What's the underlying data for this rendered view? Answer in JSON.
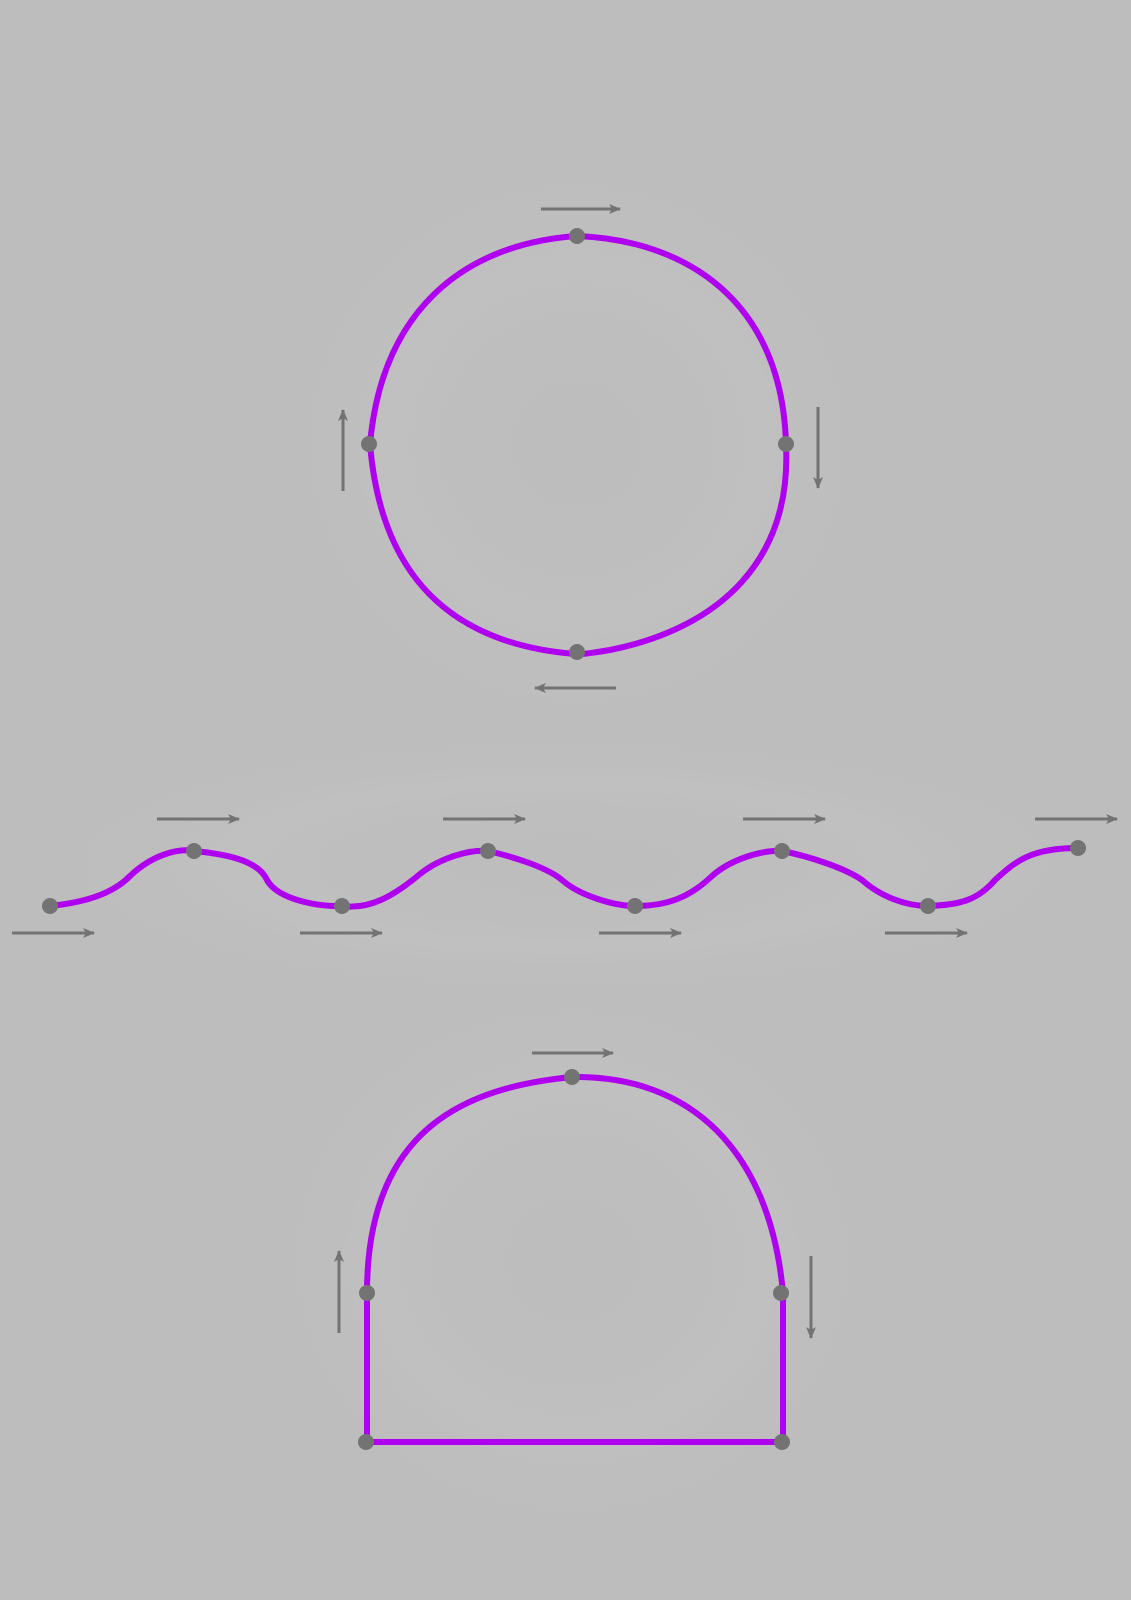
{
  "diagram": {
    "description_label": "",
    "colors": {
      "background": "#bdbdbd",
      "curve": "#b000f0",
      "handle": "#737373",
      "glow": "#c4c4c4"
    },
    "shapes": [
      {
        "name": "circle-path",
        "closed": true,
        "node_count": 4,
        "tangent_directions": [
          "right",
          "down",
          "left",
          "up"
        ]
      },
      {
        "name": "wave-path",
        "closed": false,
        "node_count": 8,
        "tangent_directions": [
          "right",
          "right",
          "right",
          "right",
          "right",
          "right",
          "right",
          "right"
        ]
      },
      {
        "name": "arch-path",
        "closed": true,
        "node_count": 5,
        "tangent_directions": [
          "up",
          "right",
          "down",
          "none",
          "none"
        ]
      }
    ]
  }
}
